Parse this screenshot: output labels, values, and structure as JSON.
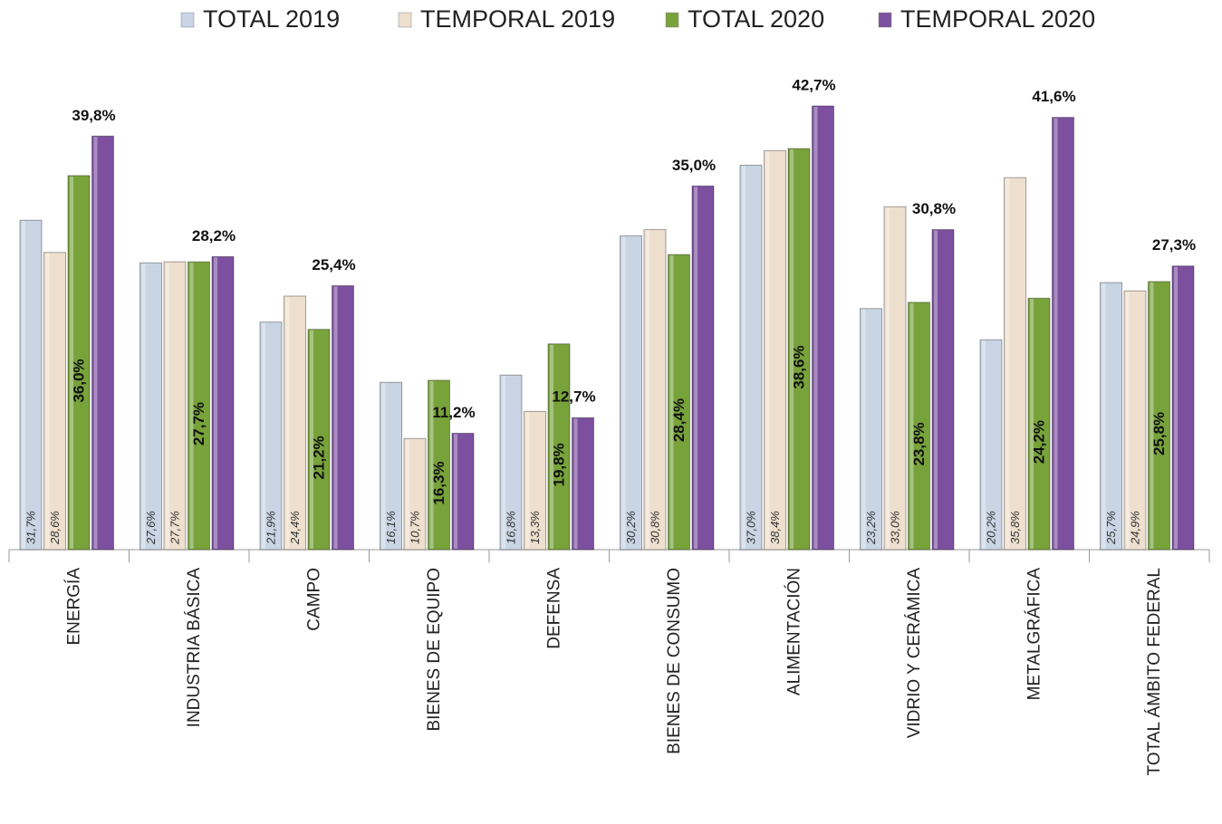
{
  "chart_data": {
    "type": "bar",
    "categories": [
      "ENERGÍA",
      "INDUSTRIA BÁSICA",
      "CAMPO",
      "BIENES DE EQUIPO",
      "DEFENSA",
      "BIENES DE CONSUMO",
      "ALIMENTACIÓN",
      "VIDRIO Y CERÁMICA",
      "METALGRÁFICA",
      "TOTAL ÁMBITO FEDERAL"
    ],
    "series": [
      {
        "name": "TOTAL 2019",
        "color": "#c9d5e4",
        "values": [
          31.7,
          27.6,
          21.9,
          16.1,
          16.8,
          30.2,
          37.0,
          23.2,
          20.2,
          25.7
        ],
        "value_labels": [
          "31,7%",
          "27,6%",
          "21,9%",
          "16,1%",
          "16,8%",
          "30,2%",
          "37,0%",
          "23,2%",
          "20,2%",
          "25,7%"
        ]
      },
      {
        "name": "TEMPORAL 2019",
        "color": "#eedfce",
        "values": [
          28.6,
          27.7,
          24.4,
          10.7,
          13.3,
          30.8,
          38.4,
          33.0,
          35.8,
          24.9
        ],
        "value_labels": [
          "28,6%",
          "27,7%",
          "24,4%",
          "10,7%",
          "13,3%",
          "30,8%",
          "38,4%",
          "33,0%",
          "35,8%",
          "24,9%"
        ]
      },
      {
        "name": "TOTAL 2020",
        "color": "#78a33b",
        "values": [
          36.0,
          27.7,
          21.2,
          16.3,
          19.8,
          28.4,
          38.6,
          23.8,
          24.2,
          25.8
        ],
        "value_labels": [
          "36,0%",
          "27,7%",
          "21,2%",
          "16,3%",
          "19,8%",
          "28,4%",
          "38,6%",
          "23,8%",
          "24,2%",
          "25,8%"
        ]
      },
      {
        "name": "TEMPORAL 2020",
        "color": "#7c509f",
        "values": [
          39.8,
          28.2,
          25.4,
          11.2,
          12.7,
          35.0,
          42.7,
          30.8,
          41.6,
          27.3
        ],
        "value_labels": [
          "39,8%",
          "28,2%",
          "25,4%",
          "11,2%",
          "12,7%",
          "35,0%",
          "42,7%",
          "30,8%",
          "41,6%",
          "27,3%"
        ]
      }
    ]
  }
}
